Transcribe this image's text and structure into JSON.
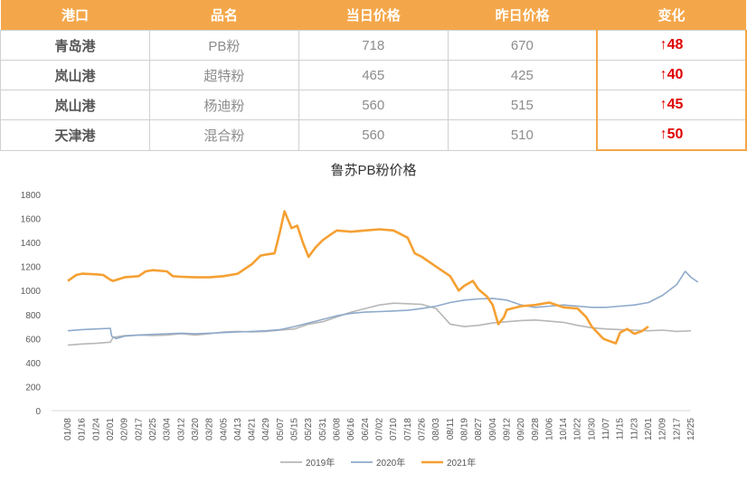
{
  "table": {
    "headers": [
      "港口",
      "品名",
      "当日价格",
      "昨日价格",
      "变化"
    ],
    "rows": [
      {
        "port": "青岛港",
        "product": "PB粉",
        "today": "718",
        "yesterday": "670",
        "change": "↑48"
      },
      {
        "port": "岚山港",
        "product": "超特粉",
        "today": "465",
        "yesterday": "425",
        "change": "↑40"
      },
      {
        "port": "岚山港",
        "product": "杨迪粉",
        "today": "560",
        "yesterday": "515",
        "change": "↑45"
      },
      {
        "port": "天津港",
        "product": "混合粉",
        "today": "560",
        "yesterday": "510",
        "change": "↑50"
      }
    ],
    "colors": {
      "header_bg": "#f4a74a",
      "up": "#e00000"
    }
  },
  "chart_data": {
    "type": "line",
    "title": "鲁苏PB粉价格",
    "xlabel": "",
    "ylabel": "",
    "ylim": [
      0,
      1800
    ],
    "yticks": [
      0,
      200,
      400,
      600,
      800,
      1000,
      1200,
      1400,
      1600,
      1800
    ],
    "xticks": [
      "01/08",
      "01/16",
      "01/24",
      "02/01",
      "02/09",
      "02/17",
      "02/25",
      "03/04",
      "03/12",
      "03/20",
      "03/28",
      "04/05",
      "04/13",
      "04/21",
      "04/29",
      "05/07",
      "05/15",
      "05/23",
      "05/31",
      "06/08",
      "06/16",
      "06/24",
      "07/02",
      "07/10",
      "07/18",
      "07/26",
      "08/03",
      "08/11",
      "08/19",
      "08/27",
      "09/04",
      "09/12",
      "09/20",
      "09/28",
      "10/06",
      "10/14",
      "10/22",
      "10/30",
      "11/07",
      "11/15",
      "11/23",
      "12/01",
      "12/09",
      "12/17",
      "12/25"
    ],
    "x_note": "x values are the index (0..44) of the tick labels in xticks; fractional values fall between ticks",
    "legend_position": "bottom",
    "grid": false,
    "series": [
      {
        "name": "2019年",
        "color": "#b7b7b7",
        "points": [
          [
            0,
            545
          ],
          [
            1,
            555
          ],
          [
            2,
            560
          ],
          [
            3,
            570
          ],
          [
            3.2,
            610
          ],
          [
            4,
            625
          ],
          [
            5,
            630
          ],
          [
            6,
            625
          ],
          [
            7,
            630
          ],
          [
            8,
            640
          ],
          [
            9,
            630
          ],
          [
            10,
            640
          ],
          [
            11,
            655
          ],
          [
            12,
            660
          ],
          [
            13,
            655
          ],
          [
            14,
            660
          ],
          [
            15,
            670
          ],
          [
            16,
            680
          ],
          [
            17,
            720
          ],
          [
            18,
            740
          ],
          [
            19,
            780
          ],
          [
            20,
            820
          ],
          [
            21,
            850
          ],
          [
            22,
            880
          ],
          [
            23,
            895
          ],
          [
            24,
            890
          ],
          [
            25,
            885
          ],
          [
            26,
            850
          ],
          [
            27,
            720
          ],
          [
            28,
            700
          ],
          [
            29,
            710
          ],
          [
            30,
            730
          ],
          [
            31,
            740
          ],
          [
            32,
            750
          ],
          [
            33,
            755
          ],
          [
            34,
            745
          ],
          [
            35,
            735
          ],
          [
            36,
            710
          ],
          [
            37,
            690
          ],
          [
            38,
            680
          ],
          [
            39,
            675
          ],
          [
            40,
            670
          ],
          [
            41,
            665
          ],
          [
            42,
            670
          ],
          [
            43,
            660
          ],
          [
            44,
            665
          ]
        ]
      },
      {
        "name": "2020年",
        "color": "#8eaacb",
        "points": [
          [
            0,
            665
          ],
          [
            1,
            675
          ],
          [
            2,
            680
          ],
          [
            3,
            685
          ],
          [
            3.1,
            620
          ],
          [
            3.4,
            600
          ],
          [
            4,
            620
          ],
          [
            5,
            630
          ],
          [
            6,
            635
          ],
          [
            7,
            640
          ],
          [
            8,
            645
          ],
          [
            9,
            640
          ],
          [
            10,
            645
          ],
          [
            11,
            650
          ],
          [
            12,
            655
          ],
          [
            13,
            660
          ],
          [
            14,
            665
          ],
          [
            15,
            675
          ],
          [
            16,
            700
          ],
          [
            17,
            730
          ],
          [
            18,
            760
          ],
          [
            19,
            790
          ],
          [
            20,
            810
          ],
          [
            21,
            820
          ],
          [
            22,
            825
          ],
          [
            23,
            830
          ],
          [
            24,
            835
          ],
          [
            25,
            850
          ],
          [
            26,
            870
          ],
          [
            27,
            900
          ],
          [
            28,
            920
          ],
          [
            29,
            930
          ],
          [
            30,
            935
          ],
          [
            31,
            920
          ],
          [
            32,
            880
          ],
          [
            33,
            860
          ],
          [
            34,
            870
          ],
          [
            35,
            880
          ],
          [
            36,
            870
          ],
          [
            37,
            860
          ],
          [
            38,
            860
          ],
          [
            39,
            870
          ],
          [
            40,
            880
          ],
          [
            41,
            900
          ],
          [
            42,
            960
          ],
          [
            43,
            1050
          ],
          [
            43.6,
            1160
          ],
          [
            44,
            1110
          ],
          [
            44.5,
            1070
          ]
        ]
      },
      {
        "name": "2021年",
        "color": "#f5a033",
        "points": [
          [
            0,
            1080
          ],
          [
            0.6,
            1130
          ],
          [
            1,
            1140
          ],
          [
            2,
            1135
          ],
          [
            2.5,
            1130
          ],
          [
            3,
            1090
          ],
          [
            3.2,
            1080
          ],
          [
            4,
            1110
          ],
          [
            5,
            1120
          ],
          [
            5.5,
            1160
          ],
          [
            6,
            1170
          ],
          [
            7,
            1160
          ],
          [
            7.4,
            1120
          ],
          [
            8,
            1115
          ],
          [
            9,
            1110
          ],
          [
            10,
            1110
          ],
          [
            11,
            1120
          ],
          [
            12,
            1140
          ],
          [
            13,
            1220
          ],
          [
            13.6,
            1290
          ],
          [
            14,
            1300
          ],
          [
            14.6,
            1310
          ],
          [
            15,
            1500
          ],
          [
            15.3,
            1660
          ],
          [
            15.8,
            1520
          ],
          [
            16.2,
            1540
          ],
          [
            16.6,
            1400
          ],
          [
            17,
            1280
          ],
          [
            17.5,
            1360
          ],
          [
            18,
            1420
          ],
          [
            18.6,
            1470
          ],
          [
            19,
            1500
          ],
          [
            20,
            1490
          ],
          [
            21,
            1500
          ],
          [
            22,
            1510
          ],
          [
            23,
            1500
          ],
          [
            24,
            1440
          ],
          [
            24.5,
            1310
          ],
          [
            25,
            1280
          ],
          [
            26,
            1200
          ],
          [
            27,
            1120
          ],
          [
            27.6,
            1000
          ],
          [
            28,
            1040
          ],
          [
            28.6,
            1080
          ],
          [
            29,
            1010
          ],
          [
            29.6,
            950
          ],
          [
            30,
            880
          ],
          [
            30.4,
            720
          ],
          [
            30.8,
            780
          ],
          [
            31,
            840
          ],
          [
            32,
            870
          ],
          [
            33,
            880
          ],
          [
            34,
            900
          ],
          [
            35,
            860
          ],
          [
            36,
            850
          ],
          [
            36.6,
            780
          ],
          [
            37,
            700
          ],
          [
            37.8,
            600
          ],
          [
            38,
            590
          ],
          [
            38.7,
            560
          ],
          [
            39,
            650
          ],
          [
            39.5,
            680
          ],
          [
            40,
            640
          ],
          [
            40.5,
            660
          ],
          [
            41,
            700
          ]
        ]
      }
    ]
  }
}
